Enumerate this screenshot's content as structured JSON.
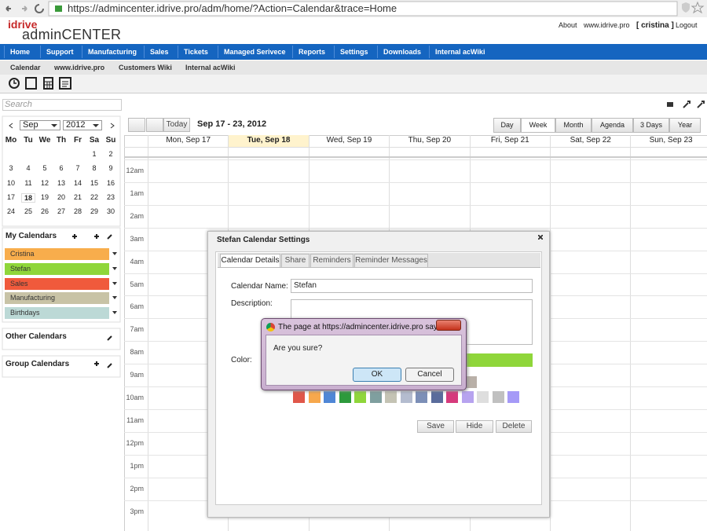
{
  "browser": {
    "url": "https://admincenter.idrive.pro/adm/home/?Action=Calendar&trace=Home"
  },
  "header": {
    "logo_top": "idrive",
    "logo_bottom": "adminCENTER",
    "links": [
      "About",
      "www.idrive.pro",
      "[ cristina ]",
      "Logout"
    ]
  },
  "nav": [
    "Home",
    "Support",
    "Manufacturing",
    "Sales",
    "Tickets",
    "Managed Serivece",
    "Reports",
    "Settings",
    "Downloads",
    "Internal acWiki"
  ],
  "subnav": [
    "Calendar",
    "www.idrive.pro",
    "Customers Wiki",
    "Internal acWiki"
  ],
  "search_placeholder": "Search",
  "mini_calendar": {
    "month": "Sep",
    "year": "2012",
    "weekdays": [
      "Mo",
      "Tu",
      "We",
      "Th",
      "Fr",
      "Sa",
      "Su"
    ],
    "weeks": [
      [
        1,
        2
      ],
      [
        3,
        4,
        5,
        6,
        7,
        8,
        9
      ],
      [
        10,
        11,
        12,
        13,
        14,
        15,
        16
      ],
      [
        17,
        18,
        19,
        20,
        21,
        22,
        23
      ],
      [
        24,
        25,
        26,
        27,
        28,
        29,
        30
      ]
    ]
  },
  "my_calendars": {
    "title": "My Calendars",
    "items": [
      {
        "name": "Cristina",
        "color": "#f8ad4c"
      },
      {
        "name": "Stefan",
        "color": "#8fd63a"
      },
      {
        "name": "Sales",
        "color": "#f05a3c"
      },
      {
        "name": "Manufacturing",
        "color": "#c8c3a6"
      },
      {
        "name": "Birthdays",
        "color": "#bcd9d6"
      }
    ]
  },
  "other_calendars": "Other Calendars",
  "group_calendars": "Group Calendars",
  "toolbar": {
    "today": "Today",
    "range": "Sep 17 - 23, 2012",
    "views": [
      "Day",
      "Week",
      "Month",
      "Agenda",
      "3 Days",
      "Year"
    ]
  },
  "week": {
    "days": [
      "Mon, Sep 17",
      "Tue, Sep 18",
      "Wed, Sep 19",
      "Thu, Sep 20",
      "Fri, Sep 21",
      "Sat, Sep 22",
      "Sun, Sep 23"
    ],
    "hours": [
      "12am",
      "1am",
      "2am",
      "3am",
      "4am",
      "5am",
      "6am",
      "7am",
      "8am",
      "9am",
      "10am",
      "11am",
      "12pm",
      "1pm",
      "2pm",
      "3pm"
    ]
  },
  "dialog": {
    "title": "Stefan Calendar Settings",
    "tabs": [
      "Calendar Details",
      "Share",
      "Reminders",
      "Reminder Messages"
    ],
    "name_label": "Calendar Name:",
    "name_value": "Stefan",
    "description_label": "Description:",
    "color_label": "Color:",
    "selected_color": "#8fd63a",
    "palette_row1": [
      "#7cc142",
      "#a9d3e6",
      "#b8d8d8",
      "#b9b0a8"
    ],
    "palette_row2": [
      "#e0574a",
      "#f7a84c",
      "#4f87d6",
      "#2d9a3c",
      "#8fd63a",
      "#7f9f9f",
      "#c4c3b4",
      "#b4bccf",
      "#7c8fb7",
      "#5a6c9c",
      "#d63a7c",
      "#b7a3ef",
      "#dedede",
      "#c0c0c0",
      "#a59af7"
    ],
    "buttons": [
      "Save",
      "Hide",
      "Delete"
    ]
  },
  "alert": {
    "title": "The page at https://admincenter.idrive.pro says:",
    "message": "Are you sure?",
    "buttons": [
      "OK",
      "Cancel"
    ]
  }
}
